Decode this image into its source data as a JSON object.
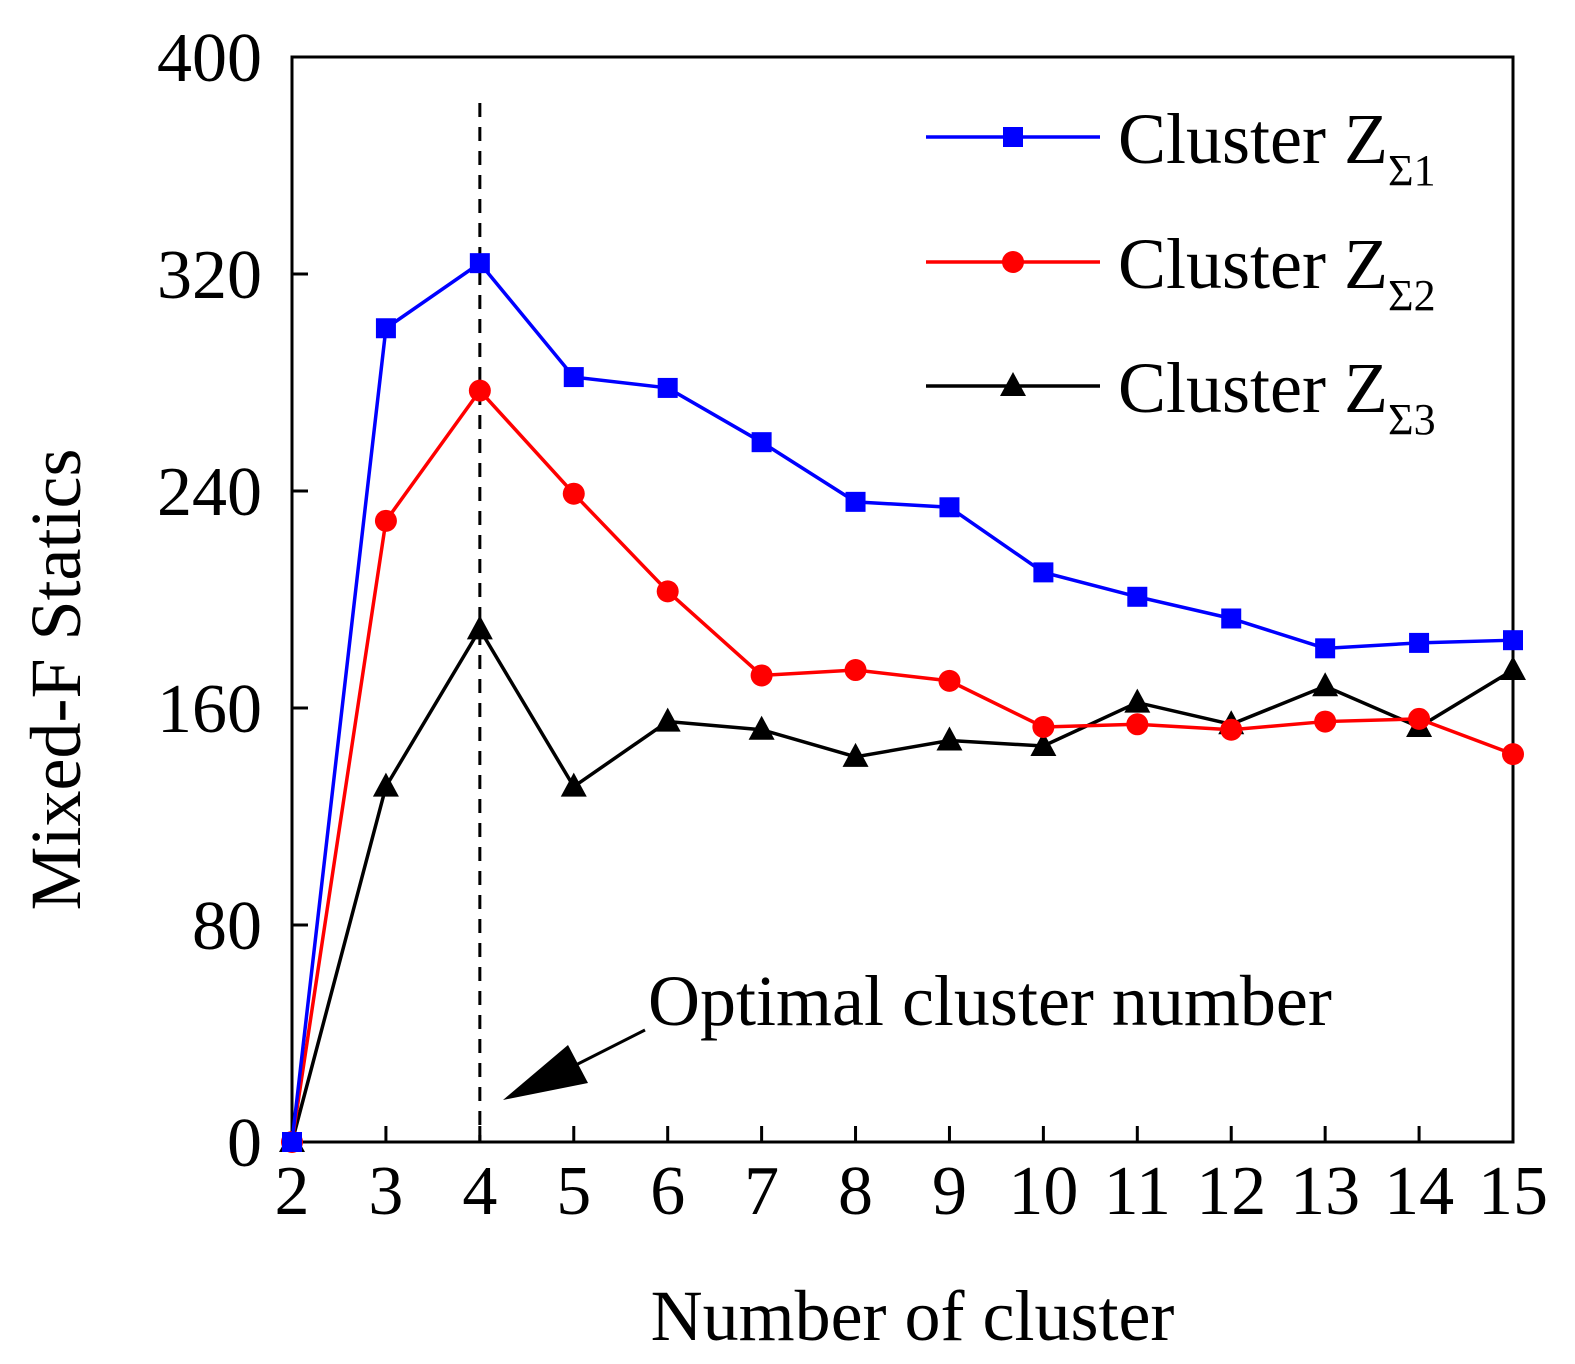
{
  "chart_data": {
    "type": "line",
    "title": "",
    "xlabel": "Number of cluster",
    "ylabel": "Mixed-F Statics",
    "x": [
      2,
      3,
      4,
      5,
      6,
      7,
      8,
      9,
      10,
      11,
      12,
      13,
      14,
      15
    ],
    "xlim": [
      2,
      15
    ],
    "ylim": [
      0,
      400
    ],
    "yticks": [
      0,
      80,
      160,
      240,
      320,
      400
    ],
    "series": [
      {
        "name": "Cluster Z",
        "subscript": "Σ1",
        "color": "#0000ff",
        "marker": "square",
        "values": [
          0,
          300,
          324,
          282,
          278,
          258,
          236,
          234,
          210,
          201,
          193,
          182,
          184,
          185
        ]
      },
      {
        "name": "Cluster Z",
        "subscript": "Σ2",
        "color": "#ff0000",
        "marker": "circle",
        "values": [
          0,
          229,
          277,
          239,
          203,
          172,
          174,
          170,
          153,
          154,
          152,
          155,
          156,
          143
        ]
      },
      {
        "name": "Cluster Z",
        "subscript": "Σ3",
        "color": "#000000",
        "marker": "triangle",
        "values": [
          0,
          131,
          189,
          131,
          155,
          152,
          142,
          148,
          146,
          162,
          154,
          168,
          153,
          174
        ]
      }
    ],
    "reference_line": {
      "x": 4,
      "style": "dashed"
    },
    "annotation": {
      "text": "Optimal cluster number",
      "points_to_x": 4
    },
    "legend_position": "top-right",
    "grid": false
  }
}
